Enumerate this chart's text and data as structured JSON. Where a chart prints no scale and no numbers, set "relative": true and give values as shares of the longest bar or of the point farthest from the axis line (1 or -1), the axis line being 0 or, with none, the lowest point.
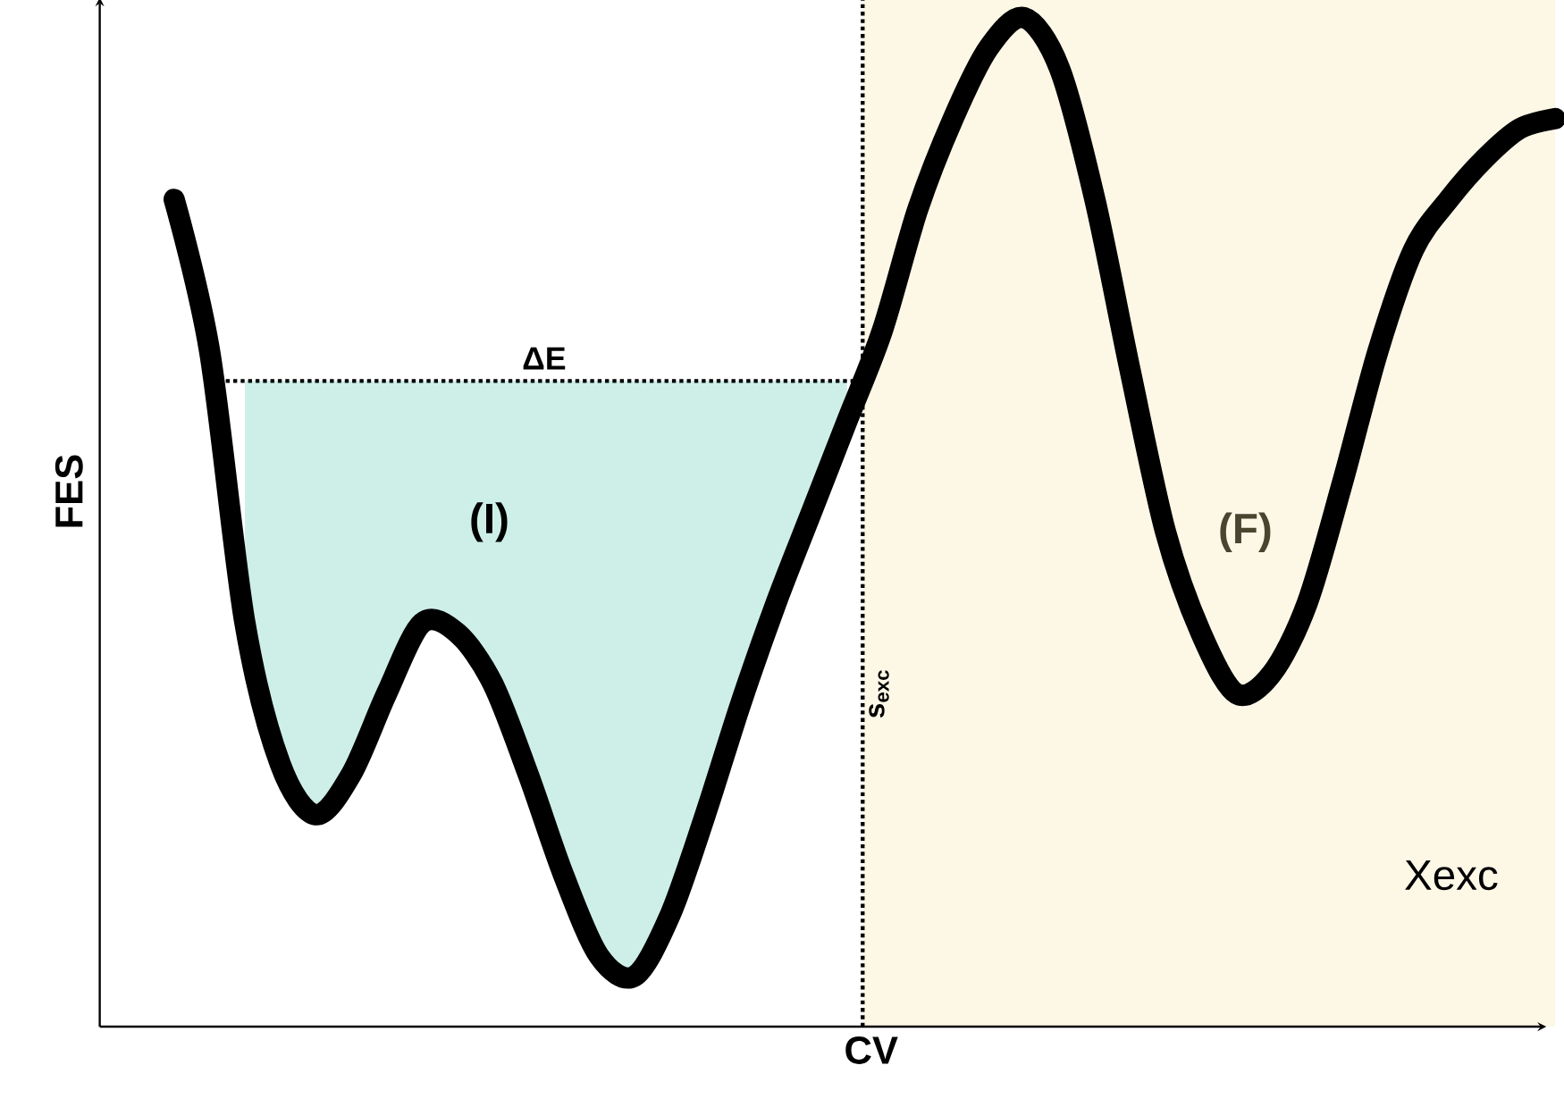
{
  "chart_data": {
    "type": "line",
    "relative": true,
    "xlabel": "CV",
    "ylabel": "FES",
    "marker": "none",
    "line_style": "solid",
    "categories": [
      null,
      null,
      null,
      null,
      null,
      null,
      null,
      null,
      null,
      null,
      null,
      null,
      null,
      null,
      null,
      null,
      null,
      null,
      null,
      null,
      null,
      null,
      null,
      null,
      null,
      null,
      null,
      null,
      null,
      null,
      null,
      null,
      null,
      null,
      null,
      null,
      null,
      null,
      null,
      null
    ],
    "series": [
      {
        "color": "#000000",
        "values": [
          0.82,
          0.67,
          0.4,
          0.26,
          0.21,
          0.25,
          0.33,
          0.4,
          0.39,
          0.34,
          0.25,
          0.15,
          0.07,
          0.05,
          0.11,
          0.21,
          0.32,
          0.42,
          0.51,
          0.6,
          0.69,
          0.81,
          0.9,
          0.97,
          1.0,
          0.95,
          0.82,
          0.65,
          0.49,
          0.39,
          0.33,
          0.35,
          0.42,
          0.54,
          0.67,
          0.77,
          0.82,
          0.86,
          0.89,
          0.9
        ],
        "lower": [
          null,
          null,
          0.4,
          0.26,
          0.21,
          0.25,
          0.33,
          0.4,
          0.39,
          0.34,
          0.25,
          0.15,
          0.07,
          0.05,
          0.11,
          0.21,
          0.32,
          0.42,
          0.51,
          0.6,
          null,
          null,
          null,
          null,
          null,
          null,
          null,
          null,
          null,
          null,
          null,
          null,
          null,
          null,
          null,
          null,
          null,
          null,
          null,
          null
        ],
        "upper": [
          null,
          null,
          0.64,
          0.64,
          0.64,
          0.64,
          0.64,
          0.64,
          0.64,
          0.64,
          0.64,
          0.64,
          0.64,
          0.64,
          0.64,
          0.64,
          0.64,
          0.64,
          0.64,
          0.64,
          null,
          null,
          null,
          null,
          null,
          null,
          null,
          null,
          null,
          null,
          null,
          null,
          null,
          null,
          null,
          null,
          null,
          null,
          null,
          null
        ]
      }
    ],
    "ref_lines": [
      {
        "axis": "y",
        "value": 0.64,
        "label": "ΔE",
        "line_style": "dotted"
      }
    ],
    "annotations": [
      "(I)",
      "(F)",
      "s$_{exc}$",
      "Xexc"
    ]
  }
}
